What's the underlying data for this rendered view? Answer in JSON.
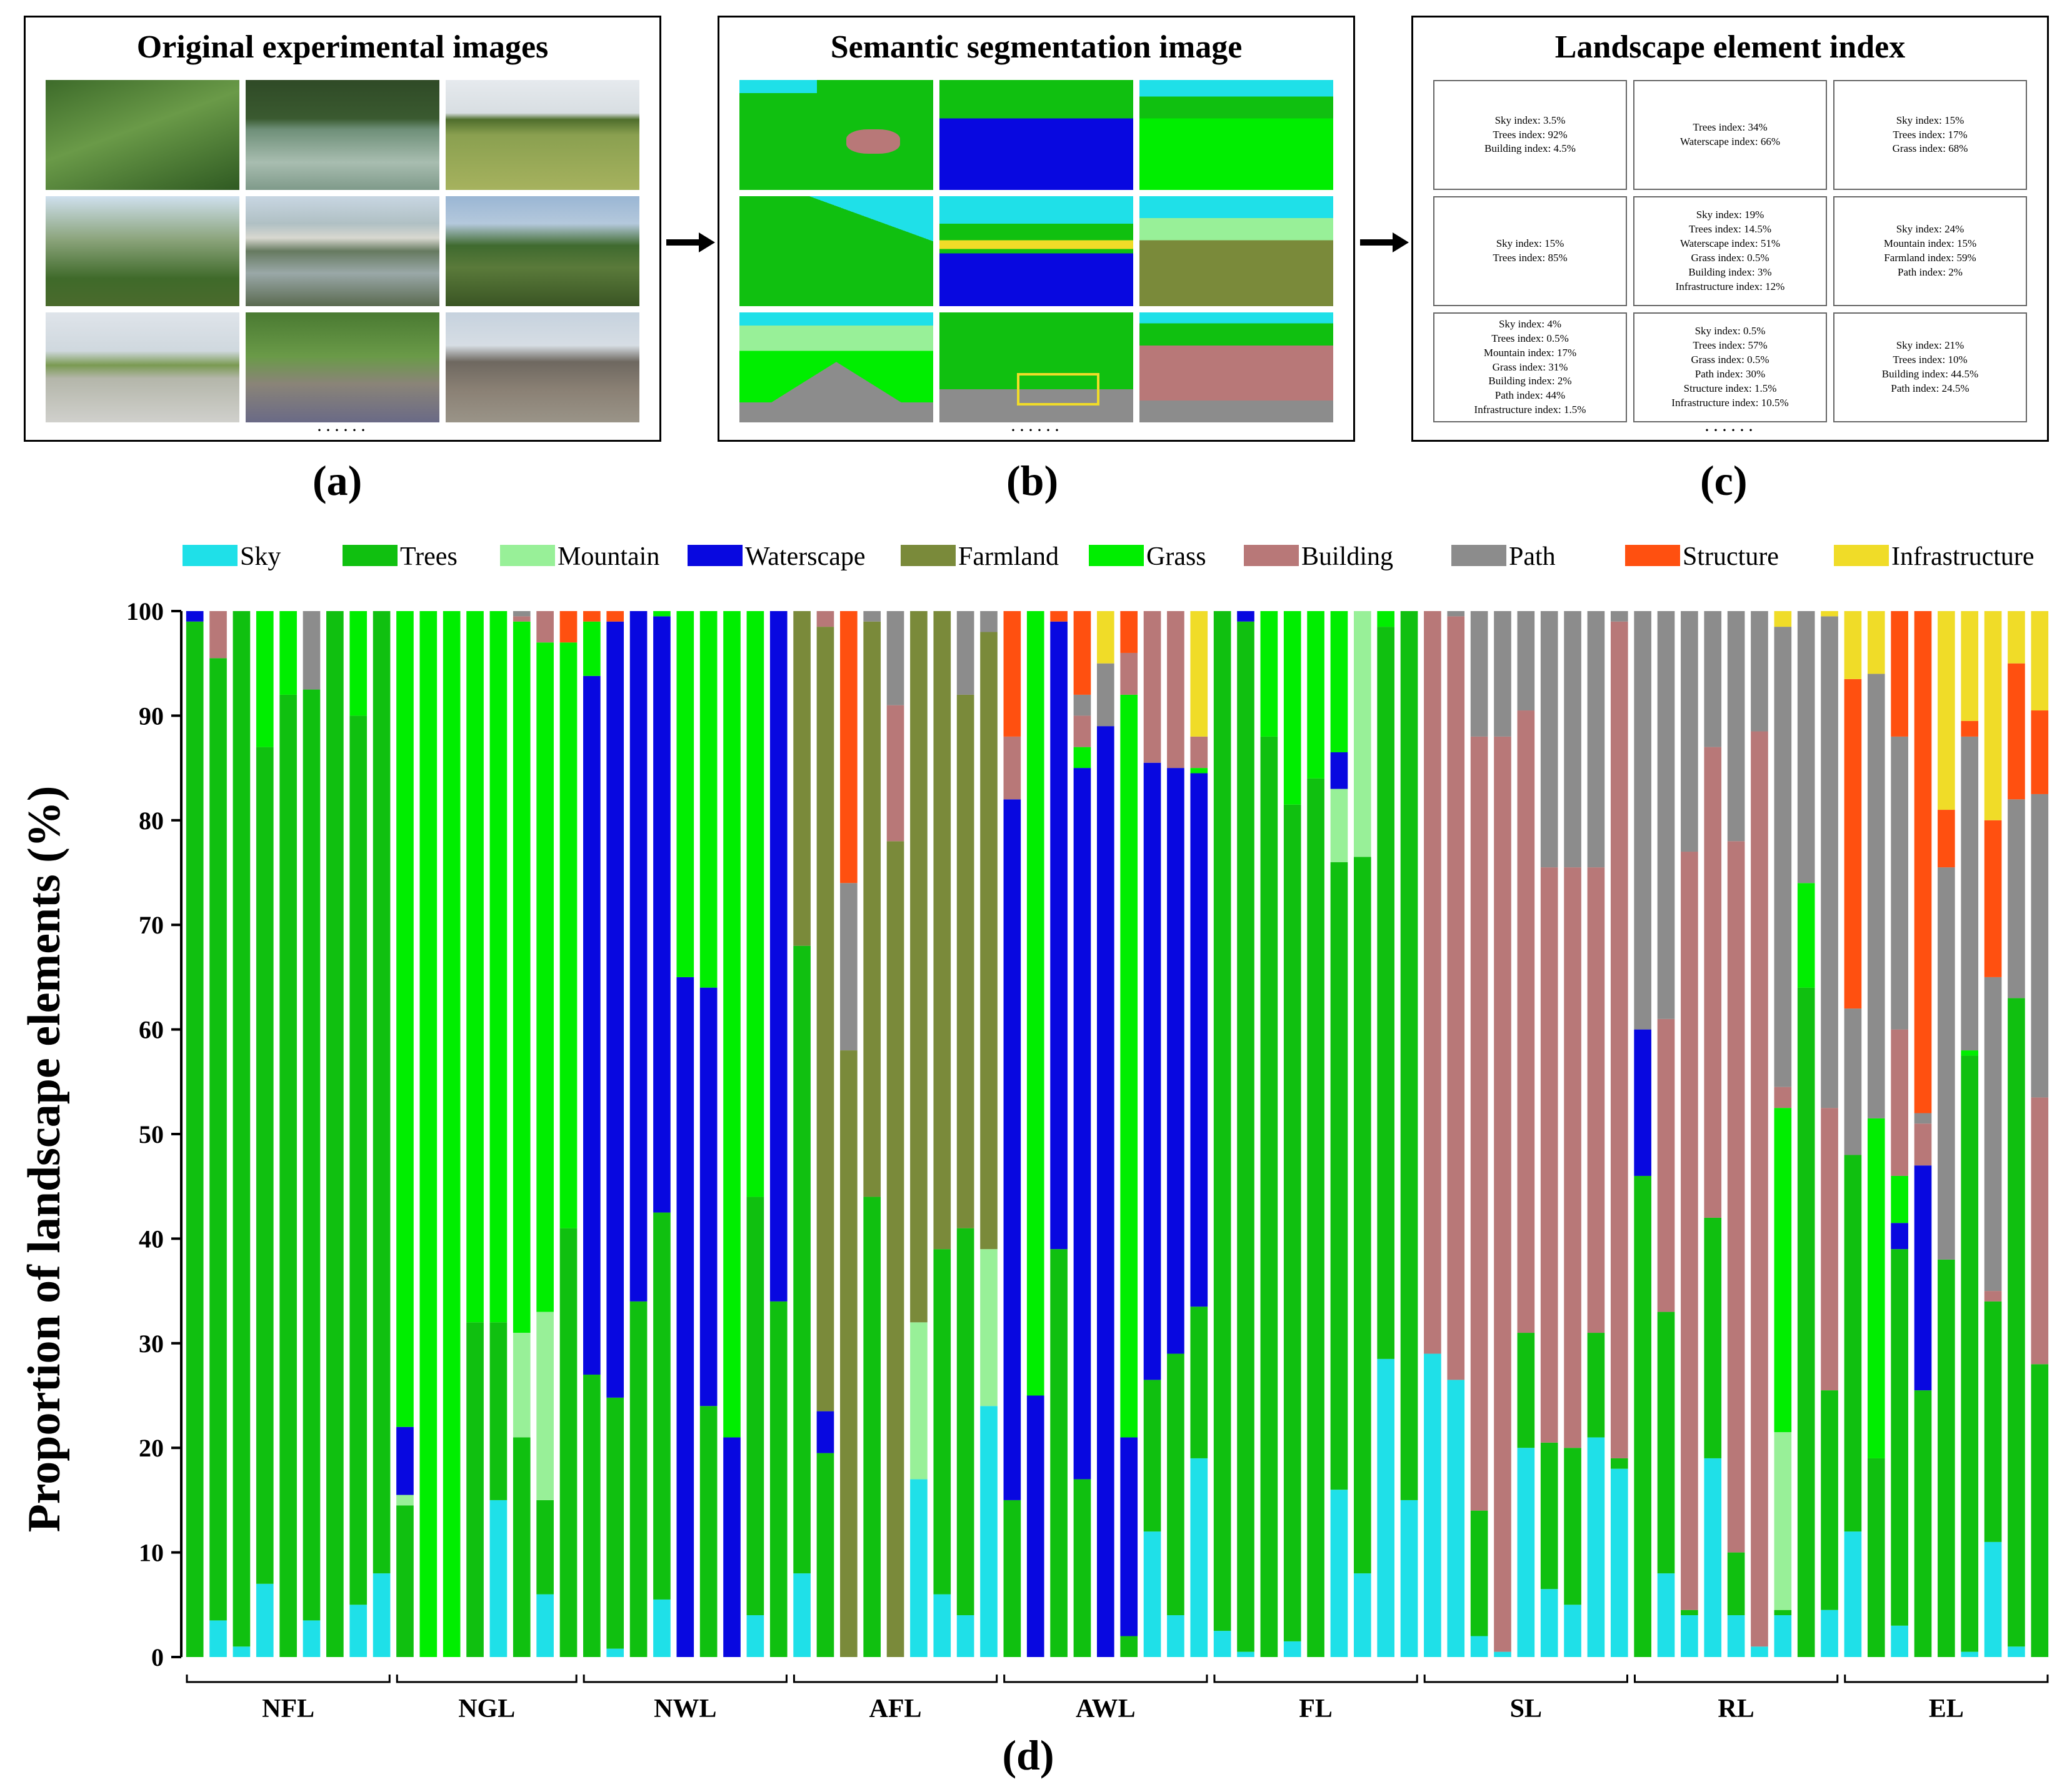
{
  "panels": {
    "a": {
      "title": "Original experimental images",
      "label": "(a)",
      "more": "······"
    },
    "b": {
      "title": "Semantic segmentation image",
      "label": "(b)",
      "more": "······"
    },
    "c": {
      "title": "Landscape element index",
      "label": "(c)",
      "more": "······",
      "cells": [
        [
          "Sky index: 3.5%",
          "Trees index: 92%",
          "Building index: 4.5%"
        ],
        [
          "Trees index: 34%",
          "Waterscape index: 66%"
        ],
        [
          "Sky index: 15%",
          "Trees index: 17%",
          "Grass index: 68%"
        ],
        [
          "Sky index: 15%",
          "Trees index: 85%"
        ],
        [
          "Sky index: 19%",
          "Trees index: 14.5%",
          "Waterscape index: 51%",
          "Grass index: 0.5%",
          "Building index: 3%",
          "Infrastructure index: 12%"
        ],
        [
          "Sky index: 24%",
          "Mountain index: 15%",
          "Farmland index: 59%",
          "Path index: 2%"
        ],
        [
          "Sky index: 4%",
          "Trees index: 0.5%",
          "Mountain index: 17%",
          "Grass index: 31%",
          "Building index: 2%",
          "Path index: 44%",
          "Infrastructure index: 1.5%"
        ],
        [
          "Sky index: 0.5%",
          "Trees index: 57%",
          "Grass index: 0.5%",
          "Path index: 30%",
          "Structure index: 1.5%",
          "Infrastructure index: 10.5%"
        ],
        [
          "Sky index: 21%",
          "Trees index: 10%",
          "Building index: 44.5%",
          "Path index: 24.5%"
        ]
      ]
    },
    "d": {
      "label": "(d)"
    }
  },
  "colors": {
    "Sky": "#1fe0e8",
    "Trees": "#10c010",
    "Mountain": "#98f098",
    "Waterscape": "#0808e0",
    "Farmland": "#7a8a3a",
    "Grass": "#00ee00",
    "Building": "#b87878",
    "Path": "#8c8c8c",
    "Structure": "#ff5010",
    "Infrastructure": "#f0dc28"
  },
  "chart_data": {
    "type": "bar",
    "stacked": true,
    "ylabel": "Proportion of landscape elements (%)",
    "ylim": [
      0,
      100
    ],
    "yticks": [
      "0",
      "10",
      "20",
      "30",
      "40",
      "50",
      "60",
      "70",
      "80",
      "90",
      "100"
    ],
    "legend": [
      "Sky",
      "Trees",
      "Mountain",
      "Waterscape",
      "Farmland",
      "Grass",
      "Building",
      "Path",
      "Structure",
      "Infrastructure"
    ],
    "stack_order": [
      "Sky",
      "Trees",
      "Mountain",
      "Waterscape",
      "Farmland",
      "Grass",
      "Building",
      "Path",
      "Structure",
      "Infrastructure"
    ],
    "groups": [
      {
        "name": "NFL",
        "bars": [
          {
            "Trees": 99,
            "Waterscape": 1
          },
          {
            "Sky": 3.5,
            "Trees": 92,
            "Building": 4.5
          },
          {
            "Sky": 1,
            "Trees": 99
          },
          {
            "Sky": 7,
            "Trees": 80,
            "Grass": 13
          },
          {
            "Trees": 92,
            "Grass": 8
          },
          {
            "Sky": 3.5,
            "Trees": 89,
            "Path": 7.5
          },
          {
            "Trees": 100
          },
          {
            "Sky": 5,
            "Trees": 85,
            "Grass": 10
          },
          {
            "Sky": 8,
            "Trees": 92
          }
        ]
      },
      {
        "name": "NGL",
        "bars": [
          {
            "Trees": 14.5,
            "Mountain": 1,
            "Waterscape": 6.5,
            "Grass": 78
          },
          {
            "Grass": 100
          },
          {
            "Grass": 100
          },
          {
            "Trees": 32,
            "Grass": 68
          },
          {
            "Sky": 15,
            "Trees": 17,
            "Grass": 68
          },
          {
            "Trees": 21,
            "Mountain": 10,
            "Grass": 68,
            "Building": 0.5,
            "Path": 0.5
          },
          {
            "Sky": 6,
            "Trees": 9,
            "Mountain": 18,
            "Grass": 64,
            "Building": 3
          },
          {
            "Trees": 41,
            "Grass": 56,
            "Structure": 3
          }
        ]
      },
      {
        "name": "NWL",
        "bars": [
          {
            "Trees": 27,
            "Waterscape": 66.8,
            "Grass": 5.2,
            "Structure": 1
          },
          {
            "Sky": 0.8,
            "Trees": 24,
            "Waterscape": 74.2,
            "Structure": 1
          },
          {
            "Trees": 34,
            "Waterscape": 66
          },
          {
            "Sky": 5.5,
            "Trees": 37,
            "Waterscape": 57,
            "Grass": 0.5
          },
          {
            "Waterscape": 65,
            "Grass": 35
          },
          {
            "Trees": 24,
            "Waterscape": 40,
            "Grass": 36
          },
          {
            "Waterscape": 21,
            "Grass": 79
          },
          {
            "Sky": 4,
            "Trees": 40,
            "Grass": 56
          },
          {
            "Trees": 34,
            "Waterscape": 66
          }
        ]
      },
      {
        "name": "AFL",
        "bars": [
          {
            "Sky": 8,
            "Trees": 60,
            "Farmland": 32
          },
          {
            "Trees": 19.5,
            "Waterscape": 4,
            "Farmland": 75,
            "Building": 1.5
          },
          {
            "Farmland": 58,
            "Path": 16,
            "Structure": 26
          },
          {
            "Trees": 44,
            "Farmland": 55,
            "Path": 1
          },
          {
            "Farmland": 78,
            "Building": 13,
            "Path": 9
          },
          {
            "Sky": 17,
            "Mountain": 15,
            "Farmland": 68
          },
          {
            "Sky": 6,
            "Trees": 33,
            "Farmland": 61
          },
          {
            "Sky": 4,
            "Trees": 37,
            "Farmland": 51,
            "Path": 8
          },
          {
            "Sky": 24,
            "Mountain": 15,
            "Farmland": 59,
            "Path": 2
          }
        ]
      },
      {
        "name": "AWL",
        "bars": [
          {
            "Trees": 15,
            "Waterscape": 67,
            "Building": 6,
            "Structure": 12
          },
          {
            "Waterscape": 25,
            "Grass": 75
          },
          {
            "Trees": 39,
            "Waterscape": 60,
            "Structure": 1
          },
          {
            "Trees": 17,
            "Waterscape": 68,
            "Grass": 2,
            "Building": 3,
            "Path": 2,
            "Structure": 8
          },
          {
            "Waterscape": 89,
            "Path": 6,
            "Infrastructure": 5
          },
          {
            "Trees": 2,
            "Waterscape": 19,
            "Grass": 71,
            "Building": 4,
            "Structure": 4
          },
          {
            "Sky": 12,
            "Trees": 14.5,
            "Waterscape": 59,
            "Building": 14.5
          },
          {
            "Sky": 4,
            "Trees": 25,
            "Waterscape": 56,
            "Building": 15
          },
          {
            "Sky": 19,
            "Trees": 14.5,
            "Waterscape": 51,
            "Grass": 0.5,
            "Building": 3,
            "Infrastructure": 12
          }
        ]
      },
      {
        "name": "FL",
        "bars": [
          {
            "Sky": 2.5,
            "Trees": 97.5
          },
          {
            "Sky": 0.5,
            "Trees": 98.5,
            "Waterscape": 1
          },
          {
            "Trees": 88,
            "Grass": 12
          },
          {
            "Sky": 1.5,
            "Trees": 80,
            "Grass": 18.5
          },
          {
            "Trees": 84,
            "Grass": 16
          },
          {
            "Sky": 16,
            "Trees": 60,
            "Mountain": 7,
            "Waterscape": 3.5,
            "Grass": 13.5
          },
          {
            "Sky": 8,
            "Trees": 68.5,
            "Mountain": 23.5
          },
          {
            "Sky": 28.5,
            "Trees": 70,
            "Grass": 1.5
          },
          {
            "Sky": 15,
            "Trees": 85
          }
        ]
      },
      {
        "name": "SL",
        "bars": [
          {
            "Sky": 29,
            "Building": 71
          },
          {
            "Sky": 26.5,
            "Building": 73,
            "Path": 0.5
          },
          {
            "Sky": 2,
            "Trees": 12,
            "Building": 74,
            "Path": 12
          },
          {
            "Sky": 0.5,
            "Building": 87.5,
            "Path": 12
          },
          {
            "Sky": 20,
            "Trees": 11,
            "Building": 59.5,
            "Path": 9.5
          },
          {
            "Sky": 6.5,
            "Trees": 14,
            "Building": 55,
            "Path": 24.5
          },
          {
            "Sky": 5,
            "Trees": 15,
            "Building": 55.5,
            "Path": 24.5
          },
          {
            "Sky": 21,
            "Trees": 10,
            "Building": 44.5,
            "Path": 24.5
          },
          {
            "Sky": 18,
            "Trees": 1,
            "Building": 80,
            "Path": 1
          }
        ]
      },
      {
        "name": "RL",
        "bars": [
          {
            "Trees": 46,
            "Waterscape": 14,
            "Path": 40
          },
          {
            "Sky": 8,
            "Trees": 25,
            "Building": 28,
            "Path": 39
          },
          {
            "Sky": 4,
            "Trees": 0.5,
            "Building": 72.5,
            "Path": 23
          },
          {
            "Sky": 19,
            "Trees": 23,
            "Building": 45,
            "Path": 13
          },
          {
            "Sky": 4,
            "Trees": 6,
            "Building": 68,
            "Path": 22
          },
          {
            "Sky": 1,
            "Building": 87.5,
            "Path": 11.5
          },
          {
            "Sky": 4,
            "Trees": 0.5,
            "Mountain": 17,
            "Grass": 31,
            "Building": 2,
            "Path": 44,
            "Infrastructure": 1.5
          },
          {
            "Trees": 64,
            "Grass": 10,
            "Path": 26
          },
          {
            "Sky": 4.5,
            "Trees": 21,
            "Building": 27,
            "Path": 47,
            "Infrastructure": 0.5
          }
        ]
      },
      {
        "name": "EL",
        "bars": [
          {
            "Sky": 12,
            "Trees": 36,
            "Path": 14,
            "Structure": 31.5,
            "Infrastructure": 6.5
          },
          {
            "Trees": 19,
            "Grass": 32.5,
            "Path": 42.5,
            "Infrastructure": 6
          },
          {
            "Sky": 3,
            "Trees": 36,
            "Waterscape": 2.5,
            "Grass": 4.5,
            "Building": 14,
            "Path": 28,
            "Structure": 12
          },
          {
            "Trees": 25.5,
            "Waterscape": 21.5,
            "Building": 4,
            "Path": 1,
            "Structure": 48
          },
          {
            "Trees": 38,
            "Path": 37.5,
            "Structure": 5.5,
            "Infrastructure": 19
          },
          {
            "Sky": 0.5,
            "Trees": 57,
            "Grass": 0.5,
            "Path": 30,
            "Structure": 1.5,
            "Infrastructure": 10.5
          },
          {
            "Sky": 11,
            "Trees": 23,
            "Building": 1,
            "Path": 30,
            "Structure": 15,
            "Infrastructure": 20
          },
          {
            "Sky": 1,
            "Trees": 62,
            "Path": 19,
            "Structure": 13,
            "Infrastructure": 5
          },
          {
            "Trees": 28,
            "Building": 25.5,
            "Path": 29,
            "Structure": 8,
            "Infrastructure": 9.5
          }
        ]
      }
    ]
  }
}
